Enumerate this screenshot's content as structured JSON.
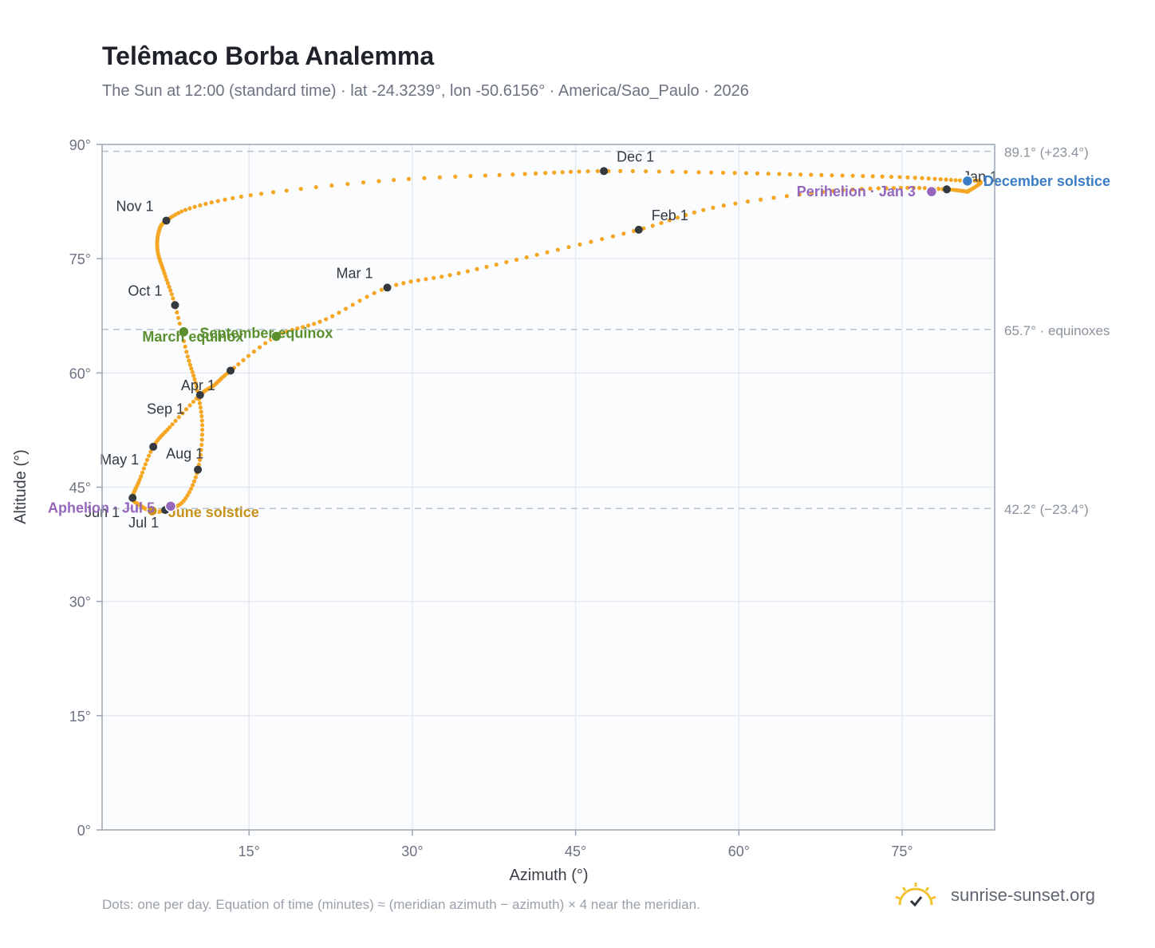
{
  "header": {
    "title": "Telêmaco Borba Analemma",
    "subtitle": "The Sun at 12:00 (standard time) · lat -24.3239°, lon -50.6156° · America/Sao_Paulo · 2026"
  },
  "footer": {
    "note": "Dots: one per day. Equation of time (minutes) ≈ (meridian azimuth − azimuth) × 4 near the meridian.",
    "brand": "sunrise-sunset.org",
    "brand_icon": "sun-check-icon"
  },
  "colors": {
    "curve": "#f5a623",
    "month_marker": "#343a40",
    "equinox": "#5a8f2e",
    "june_solstice": "#c8921a",
    "december_solstice": "#3b7dc4",
    "apsis": "#9467bd",
    "reference_line": "#b8c2cc",
    "plot_background": "#fafcfe",
    "grid": "#e6e9ee"
  },
  "chart_data": {
    "type": "scatter",
    "xlabel": "Azimuth (°)",
    "ylabel": "Altitude (°)",
    "xlim": [
      1.5,
      83.5
    ],
    "ylim": [
      0,
      90
    ],
    "x_ticks": [
      15,
      30,
      45,
      60,
      75
    ],
    "y_ticks": [
      0,
      15,
      30,
      45,
      60,
      75,
      90
    ],
    "grid": true,
    "reference_lines": [
      {
        "y": 89.1,
        "label": "89.1° (+23.4°)"
      },
      {
        "y": 65.7,
        "label": "65.7° · equinoxes"
      },
      {
        "y": 42.2,
        "label": "42.2° (−23.4°)"
      }
    ],
    "path_keys": [
      [
        81.0,
        83.8
      ],
      [
        79.1,
        84.1
      ],
      [
        75.0,
        84.3
      ],
      [
        68.0,
        83.8
      ],
      [
        58.0,
        81.8
      ],
      [
        50.8,
        78.8
      ],
      [
        42.0,
        75.7
      ],
      [
        34.0,
        73.0
      ],
      [
        27.7,
        71.2
      ],
      [
        22.0,
        67.0
      ],
      [
        17.5,
        64.8
      ],
      [
        13.3,
        60.3
      ],
      [
        11.8,
        58.4
      ],
      [
        10.5,
        57.1
      ],
      [
        7.8,
        53.0
      ],
      [
        6.2,
        50.3
      ],
      [
        4.9,
        45.8
      ],
      [
        4.3,
        43.6
      ],
      [
        5.0,
        42.6
      ],
      [
        6.1,
        41.8
      ],
      [
        7.3,
        42.0
      ],
      [
        9.0,
        43.2
      ],
      [
        10.3,
        47.3
      ],
      [
        10.7,
        53.0
      ],
      [
        10.2,
        58.0
      ],
      [
        9.3,
        62.5
      ],
      [
        8.2,
        68.9
      ],
      [
        7.2,
        73.2
      ],
      [
        6.6,
        76.0
      ],
      [
        6.7,
        78.5
      ],
      [
        7.4,
        80.0
      ],
      [
        10.0,
        81.8
      ],
      [
        16.0,
        83.5
      ],
      [
        28.0,
        85.3
      ],
      [
        40.0,
        86.1
      ],
      [
        47.6,
        86.5
      ],
      [
        58.0,
        86.3
      ],
      [
        67.0,
        86.0
      ],
      [
        75.0,
        85.7
      ],
      [
        80.0,
        85.3
      ],
      [
        82.2,
        85.1
      ],
      [
        81.0,
        83.8
      ]
    ],
    "month_markers": [
      {
        "label": "Jan 1",
        "x": 79.1,
        "y": 84.1
      },
      {
        "label": "Feb 1",
        "x": 50.8,
        "y": 78.8
      },
      {
        "label": "Mar 1",
        "x": 27.7,
        "y": 71.2
      },
      {
        "label": "Apr 1",
        "x": 10.5,
        "y": 57.1
      },
      {
        "label": "May 1",
        "x": 6.2,
        "y": 50.3
      },
      {
        "label": "Jun 1",
        "x": 4.3,
        "y": 43.6
      },
      {
        "label": "Jul 1",
        "x": 7.3,
        "y": 42.0
      },
      {
        "label": "Aug 1",
        "x": 10.3,
        "y": 47.3
      },
      {
        "label": "Sep 1",
        "x": 13.3,
        "y": 60.3
      },
      {
        "label": "Oct 1",
        "x": 8.2,
        "y": 68.9
      },
      {
        "label": "Nov 1",
        "x": 7.4,
        "y": 80.0
      },
      {
        "label": "Dec 1",
        "x": 47.6,
        "y": 86.5
      }
    ],
    "events": [
      {
        "label": "December solstice",
        "x": 81.0,
        "y": 85.2,
        "kind": "december_solstice"
      },
      {
        "label": "Perihelion · Jan 3",
        "x": 77.7,
        "y": 83.8,
        "kind": "apsis"
      },
      {
        "label": "March equinox",
        "x": 9.0,
        "y": 65.4,
        "kind": "equinox"
      },
      {
        "label": "September equinox",
        "x": 17.5,
        "y": 64.8,
        "kind": "equinox"
      },
      {
        "label": "June solstice",
        "x": 6.1,
        "y": 41.9,
        "kind": "june_solstice"
      },
      {
        "label": "Aphelion · Jul 5",
        "x": 7.8,
        "y": 42.5,
        "kind": "apsis"
      }
    ]
  }
}
